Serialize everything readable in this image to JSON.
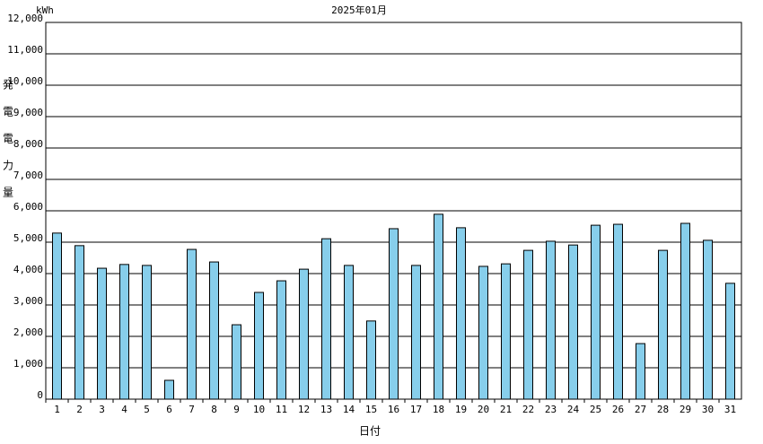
{
  "chart_data": {
    "type": "bar",
    "title": "2025年01月",
    "unit_label": "kWh",
    "y_label": "発電電力量",
    "x_label": "日付",
    "categories": [
      "1",
      "2",
      "3",
      "4",
      "5",
      "6",
      "7",
      "8",
      "9",
      "10",
      "11",
      "12",
      "13",
      "14",
      "15",
      "16",
      "17",
      "18",
      "19",
      "20",
      "21",
      "22",
      "23",
      "24",
      "25",
      "26",
      "27",
      "28",
      "29",
      "30",
      "31"
    ],
    "values": [
      5290,
      4890,
      4170,
      4290,
      4260,
      600,
      4770,
      4370,
      2370,
      3400,
      3770,
      4140,
      5110,
      4260,
      2490,
      5430,
      4260,
      5890,
      5460,
      4230,
      4310,
      4740,
      5030,
      4910,
      5540,
      5570,
      1770,
      4740,
      5600,
      5060,
      3690
    ],
    "color": "#87ceeb",
    "ylim": [
      0,
      12000
    ],
    "yticks": [
      0,
      {
        "value": 1000,
        "label": "1,000"
      },
      {
        "value": 2000,
        "label": "2,000"
      },
      {
        "value": 3000,
        "label": "3,000"
      },
      {
        "value": 4000,
        "label": "4,000"
      },
      {
        "value": 5000,
        "label": "5,000"
      },
      {
        "value": 6000,
        "label": "6,000"
      },
      {
        "value": 7000,
        "label": "7,000"
      },
      {
        "value": 8000,
        "label": "8,000"
      },
      {
        "value": 9000,
        "label": "9,000"
      },
      {
        "value": 10000,
        "label": "10,000"
      },
      {
        "value": 11000,
        "label": "11,000"
      },
      {
        "value": 12000,
        "label": "12,000"
      }
    ],
    "grid": true
  }
}
